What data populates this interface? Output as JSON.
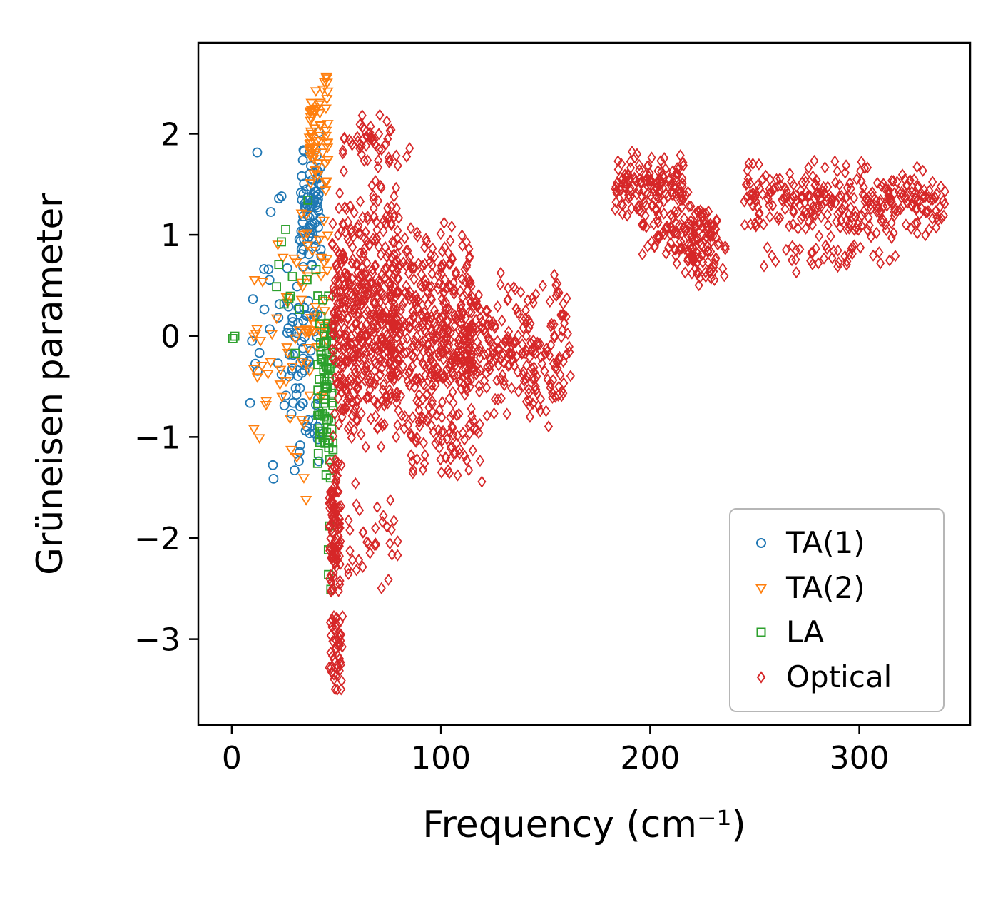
{
  "chart_data": {
    "type": "scatter",
    "title": "",
    "xlabel": "Frequency (cm⁻¹)",
    "ylabel": "Grüneisen parameter",
    "xlim": [
      -16,
      353
    ],
    "ylim": [
      -3.85,
      2.9
    ],
    "xticks": [
      0,
      100,
      200,
      300
    ],
    "yticks": [
      2,
      1,
      0,
      -1,
      -2,
      -3
    ],
    "grid": false,
    "legend_position": "lower right",
    "series": [
      {
        "name": "TA(1)",
        "marker": "circle",
        "color": "#1f77b4",
        "clusters": [
          {
            "x": [
              8,
              36
            ],
            "y": [
              -1.8,
              2.0
            ],
            "n": 40
          },
          {
            "x": [
              33,
              43
            ],
            "y": [
              0.6,
              2.05
            ],
            "n": 75
          },
          {
            "x": [
              27,
              43
            ],
            "y": [
              -1.4,
              0.6
            ],
            "n": 50
          }
        ]
      },
      {
        "name": "TA(2)",
        "marker": "triangle-down",
        "color": "#ff7f0e",
        "clusters": [
          {
            "x": [
              37,
              46
            ],
            "y": [
              1.35,
              2.65
            ],
            "n": 60
          },
          {
            "x": [
              33,
              46
            ],
            "y": [
              -1.0,
              1.35
            ],
            "n": 45
          },
          {
            "x": [
              10,
              36
            ],
            "y": [
              -2.05,
              1.2
            ],
            "n": 40
          }
        ]
      },
      {
        "name": "LA",
        "marker": "square",
        "color": "#2ca02c",
        "clusters": [
          {
            "x": [
              41,
              48.5
            ],
            "y": [
              -1.6,
              0.6
            ],
            "n": 80
          },
          {
            "x": [
              20,
              42
            ],
            "y": [
              -0.25,
              1.45
            ],
            "n": 14
          },
          {
            "x": [
              44,
              48
            ],
            "y": [
              -2.7,
              -1.6
            ],
            "n": 4
          },
          {
            "x": [
              -1.5,
              2
            ],
            "y": [
              -0.06,
              0.06
            ],
            "n": 2
          }
        ]
      },
      {
        "name": "Optical",
        "marker": "diamond",
        "color": "#d62728",
        "clusters": [
          {
            "x": [
              46.5,
              52
            ],
            "y": [
              -2.7,
              -1.1
            ],
            "n": 110
          },
          {
            "x": [
              46.5,
              53
            ],
            "y": [
              -3.55,
              -2.6
            ],
            "n": 45
          },
          {
            "x": [
              48,
              80
            ],
            "y": [
              -1.35,
              1.65
            ],
            "n": 500
          },
          {
            "x": [
              75,
              115
            ],
            "y": [
              -1.1,
              1.2
            ],
            "n": 400
          },
          {
            "x": [
              110,
              162
            ],
            "y": [
              -0.95,
              0.65
            ],
            "n": 260
          },
          {
            "x": [
              52,
              86
            ],
            "y": [
              1.6,
              2.2
            ],
            "n": 50
          },
          {
            "x": [
              52,
              80
            ],
            "y": [
              -2.6,
              -1.4
            ],
            "n": 35
          },
          {
            "x": [
              85,
              120
            ],
            "y": [
              -1.5,
              -0.7
            ],
            "n": 60
          },
          {
            "x": [
              183,
              216
            ],
            "y": [
              1.1,
              1.85
            ],
            "n": 130
          },
          {
            "x": [
              196,
              232
            ],
            "y": [
              0.75,
              1.45
            ],
            "n": 110
          },
          {
            "x": [
              212,
              236
            ],
            "y": [
              0.45,
              1.05
            ],
            "n": 60
          },
          {
            "x": [
              245,
              341
            ],
            "y": [
              0.95,
              1.75
            ],
            "n": 300
          },
          {
            "x": [
              252,
              318
            ],
            "y": [
              0.62,
              1.0
            ],
            "n": 40
          }
        ]
      }
    ]
  }
}
